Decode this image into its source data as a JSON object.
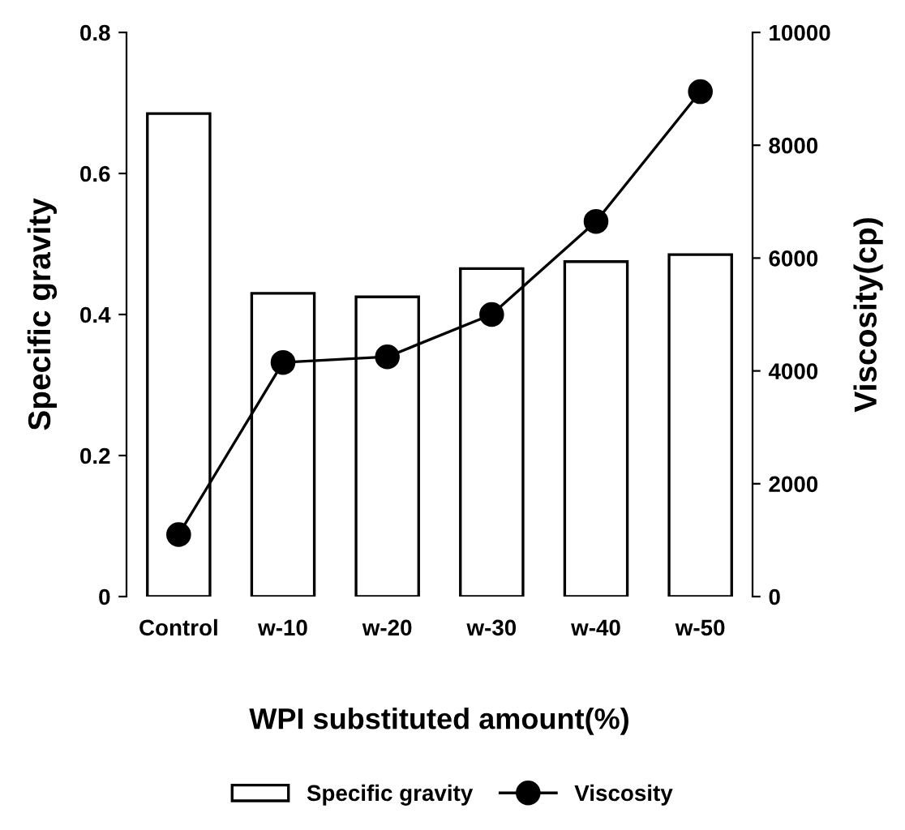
{
  "chart_data": {
    "type": "bar",
    "xlabel": "WPI substituted amount(%)",
    "ylabel": "Specific gravity",
    "y2label": "Viscosity(cp)",
    "categories": [
      "Control",
      "w-10",
      "w-20",
      "w-30",
      "w-40",
      "w-50"
    ],
    "series": [
      {
        "name": "Specific gravity",
        "color": "#ffffff",
        "values": [
          0.685,
          0.43,
          0.425,
          0.465,
          0.475,
          0.485
        ]
      },
      {
        "name": "Viscosity",
        "type": "line",
        "axis": "y2",
        "color": "#000000",
        "marker": "circle",
        "values": [
          1100,
          4150,
          4250,
          5000,
          6650,
          8950
        ]
      }
    ],
    "ylim": [
      0,
      0.8
    ],
    "yticks": [
      0,
      0.2,
      0.4,
      0.6,
      0.8
    ],
    "y2lim": [
      0,
      10000
    ],
    "y2ticks": [
      0,
      2000,
      4000,
      6000,
      8000,
      10000
    ],
    "grid": false,
    "legend": "bottom"
  }
}
